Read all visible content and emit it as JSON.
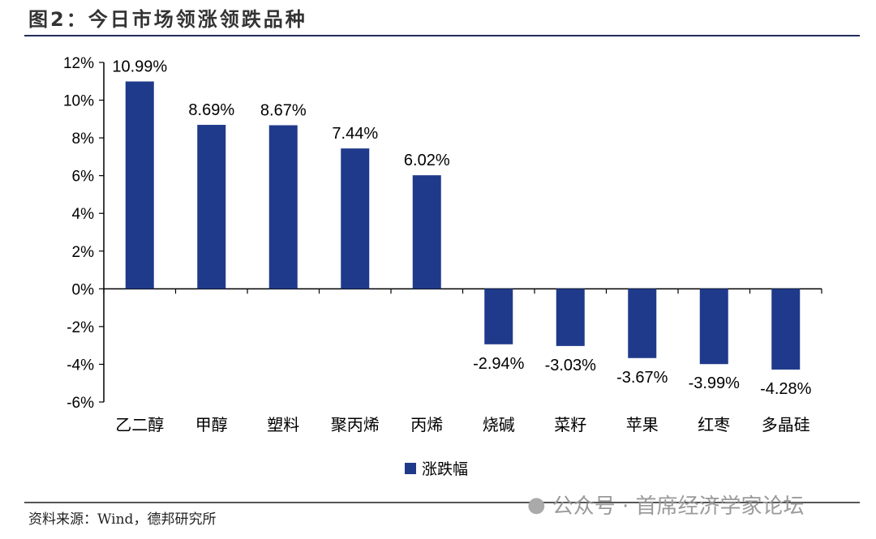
{
  "title": "图2：今日市场领涨领跌品种",
  "source": "资料来源：Wind，德邦研究所",
  "watermark": "公众号 · 首席经济学家论坛",
  "colors": {
    "bar": "#1f3a8a",
    "title": "#333333",
    "rule": "#1f2d5a"
  },
  "chart_data": {
    "type": "bar",
    "title": "今日市场领涨领跌品种",
    "xlabel": "",
    "ylabel": "",
    "categories": [
      "乙二醇",
      "甲醇",
      "塑料",
      "聚丙烯",
      "丙烯",
      "烧碱",
      "菜籽",
      "苹果",
      "红枣",
      "多晶硅"
    ],
    "series": [
      {
        "name": "涨跌幅",
        "values": [
          10.99,
          8.69,
          8.67,
          7.44,
          6.02,
          -2.94,
          -3.03,
          -3.67,
          -3.99,
          -4.28
        ]
      }
    ],
    "data_labels": [
      "10.99%",
      "8.69%",
      "8.67%",
      "7.44%",
      "6.02%",
      "-2.94%",
      "-3.03%",
      "-3.67%",
      "-3.99%",
      "-4.28%"
    ],
    "ylim": [
      -6,
      12
    ],
    "yticks": [
      12,
      10,
      8,
      6,
      4,
      2,
      0,
      -2,
      -4,
      -6
    ],
    "ytick_labels": [
      "12%",
      "10%",
      "8%",
      "6%",
      "4%",
      "2%",
      "0%",
      "-2%",
      "-4%",
      "-6%"
    ],
    "grid": false,
    "legend": "bottom-center"
  }
}
